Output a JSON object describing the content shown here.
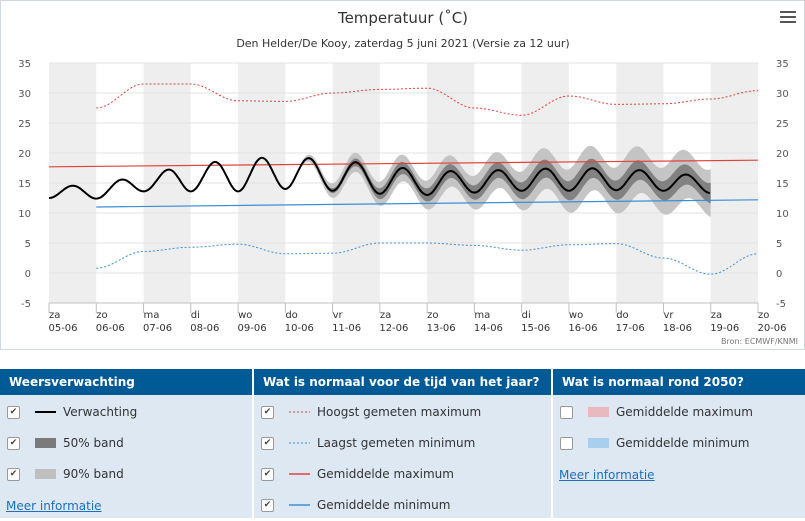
{
  "chart": {
    "title": "Temperatuur (˚C)",
    "subtitle": "Den Helder/De Kooy, zaterdag 5 juni 2021 (Versie za 12 uur)",
    "source": "Bron: ECMWF/KNMI"
  },
  "chart_data": {
    "type": "line",
    "title": "Temperatuur (˚C)",
    "subtitle": "Den Helder/De Kooy, zaterdag 5 juni 2021 (Versie za 12 uur)",
    "x_ticks": [
      {
        "day": "za",
        "date": "05-06"
      },
      {
        "day": "zo",
        "date": "06-06"
      },
      {
        "day": "ma",
        "date": "07-06"
      },
      {
        "day": "di",
        "date": "08-06"
      },
      {
        "day": "wo",
        "date": "09-06"
      },
      {
        "day": "do",
        "date": "10-06"
      },
      {
        "day": "vr",
        "date": "11-06"
      },
      {
        "day": "za",
        "date": "12-06"
      },
      {
        "day": "zo",
        "date": "13-06"
      },
      {
        "day": "ma",
        "date": "14-06"
      },
      {
        "day": "di",
        "date": "15-06"
      },
      {
        "day": "wo",
        "date": "16-06"
      },
      {
        "day": "do",
        "date": "17-06"
      },
      {
        "day": "vr",
        "date": "18-06"
      },
      {
        "day": "za",
        "date": "19-06"
      },
      {
        "day": "zo",
        "date": "20-06"
      }
    ],
    "x_range": [
      "05-06",
      "20-06"
    ],
    "y_ticks": [
      -5,
      0,
      5,
      10,
      15,
      20,
      25,
      30,
      35
    ],
    "ylim": [
      -5,
      35
    ],
    "grid": true,
    "series": [
      {
        "name": "Hoogst gemeten maximum",
        "style": "dotted",
        "color": "#e0423a",
        "x": [
          "06-06",
          "07-06",
          "08-06",
          "09-06",
          "10-06",
          "11-06",
          "12-06",
          "13-06",
          "14-06",
          "15-06",
          "16-06",
          "17-06",
          "18-06",
          "19-06",
          "20-06"
        ],
        "values": [
          27.5,
          31.5,
          31.5,
          28.7,
          28.6,
          30.0,
          30.6,
          30.8,
          27.5,
          26.3,
          29.5,
          28.1,
          28.2,
          29.0,
          30.4
        ]
      },
      {
        "name": "Gemiddelde maximum",
        "style": "solid",
        "color": "#e0423a",
        "x": [
          "05-06",
          "20-06"
        ],
        "values": [
          17.7,
          18.8
        ]
      },
      {
        "name": "Gemiddelde minimum",
        "style": "solid",
        "color": "#3a8fd8",
        "x": [
          "06-06",
          "20-06"
        ],
        "values": [
          11.0,
          12.2
        ]
      },
      {
        "name": "Laagst gemeten minimum",
        "style": "dotted",
        "color": "#3a8fd8",
        "x": [
          "06-06",
          "07-06",
          "08-06",
          "09-06",
          "10-06",
          "11-06",
          "12-06",
          "13-06",
          "14-06",
          "15-06",
          "16-06",
          "17-06",
          "18-06",
          "19-06",
          "20-06"
        ],
        "values": [
          0.8,
          3.6,
          4.3,
          4.8,
          3.2,
          3.3,
          5.0,
          5.0,
          4.6,
          3.8,
          4.7,
          4.9,
          2.5,
          -0.2,
          3.2
        ]
      },
      {
        "name": "Verwachting",
        "style": "solid",
        "color": "#000000",
        "x": [
          "05-06",
          "06-06",
          "07-06",
          "08-06",
          "09-06",
          "10-06",
          "11-06",
          "12-06",
          "13-06",
          "14-06",
          "15-06",
          "16-06",
          "17-06",
          "18-06",
          "19-06"
        ],
        "values": [
          13.5,
          13.5,
          15.0,
          15.8,
          16.3,
          16.7,
          16.3,
          15.6,
          15.0,
          15.2,
          15.5,
          15.6,
          15.6,
          15.3,
          14.6
        ],
        "daily_swing": [
          1.0,
          1.1,
          1.4,
          2.2,
          2.7,
          2.7,
          2.6,
          2.4,
          2.0,
          1.8,
          1.8,
          1.9,
          1.8,
          1.6,
          1.3
        ]
      },
      {
        "name": "50% band",
        "style": "band",
        "color": "#7a7a7a",
        "x": [
          "10-06",
          "11-06",
          "12-06",
          "13-06",
          "14-06",
          "15-06",
          "16-06",
          "17-06",
          "18-06",
          "19-06"
        ],
        "halfwidth": [
          0.0,
          0.4,
          0.9,
          1.1,
          1.2,
          1.4,
          1.6,
          1.6,
          1.6,
          1.7
        ]
      },
      {
        "name": "90% band",
        "style": "band",
        "color": "#bfbfbf",
        "x": [
          "10-06",
          "11-06",
          "12-06",
          "13-06",
          "14-06",
          "15-06",
          "16-06",
          "17-06",
          "18-06",
          "19-06"
        ],
        "halfwidth": [
          0.0,
          1.2,
          2.0,
          2.4,
          2.8,
          3.2,
          3.6,
          3.8,
          3.9,
          4.0
        ]
      }
    ]
  },
  "legend": {
    "col1": {
      "header": "Weersverwachting",
      "rows": [
        {
          "label": "Verwachting",
          "checked": "✔"
        },
        {
          "label": "50% band",
          "checked": "✔"
        },
        {
          "label": "90% band",
          "checked": "✔"
        }
      ],
      "more": "Meer informatie"
    },
    "col2": {
      "header": "Wat is normaal voor de tijd van het jaar?",
      "rows": [
        {
          "label": "Hoogst gemeten maximum",
          "checked": "✔"
        },
        {
          "label": "Laagst gemeten minimum",
          "checked": "✔"
        },
        {
          "label": "Gemiddelde maximum",
          "checked": "✔"
        },
        {
          "label": "Gemiddelde minimum",
          "checked": "✔"
        }
      ]
    },
    "col3": {
      "header": "Wat is normaal rond 2050?",
      "rows": [
        {
          "label": "Gemiddelde maximum",
          "checked": ""
        },
        {
          "label": "Gemiddelde minimum",
          "checked": ""
        }
      ],
      "more": "Meer informatie"
    }
  },
  "colors": {
    "accent": "#005a96",
    "panel": "#dde8f3",
    "link": "#1e6fb7",
    "red": "#e0423a",
    "blue": "#3a8fd8",
    "band50": "#7a7a7a",
    "band90": "#bfbfbf",
    "future_max": "#e9b9c0",
    "future_min": "#a9cfee"
  }
}
